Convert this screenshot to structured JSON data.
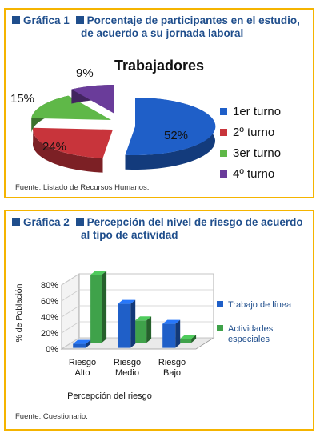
{
  "figure1": {
    "label": "Gráfica 1",
    "caption_line1": "Porcentaje de participantes en el estudio,",
    "caption_line2": "de acuerdo a su jornada laboral",
    "source": "Fuente: Listado de Recursos Humanos."
  },
  "figure2": {
    "label": "Gráfica 2",
    "caption_line1": "Percepción del nivel de riesgo de acuerdo",
    "caption_line2": "al tipo de actividad",
    "source": "Fuente: Cuestionario."
  },
  "chart_data": [
    {
      "type": "pie",
      "title": "Trabajadores",
      "categories": [
        "1er turno",
        "2º turno",
        "3er turno",
        "4º turno"
      ],
      "values": [
        52,
        24,
        15,
        9
      ],
      "value_labels": [
        "52%",
        "24%",
        "15%",
        "9%"
      ],
      "colors": [
        "#1f5fc8",
        "#c8343b",
        "#5fb848",
        "#6a3c9a"
      ],
      "legend": "right"
    },
    {
      "type": "bar",
      "categories": [
        "Riesgo Alto",
        "Riesgo Medio",
        "Riesgo Bajo"
      ],
      "category_lines": [
        [
          "Riesgo",
          "Alto"
        ],
        [
          "Riesgo",
          "Medio"
        ],
        [
          "Riesgo",
          "Bajo"
        ]
      ],
      "series": [
        {
          "name": "Trabajo de línea",
          "values": [
            5,
            55,
            30
          ],
          "color": "#1f5fc8"
        },
        {
          "name": "Actividades especiales",
          "values": [
            85,
            28,
            5
          ],
          "color": "#3fa24a"
        }
      ],
      "legend_lines": [
        [
          "Trabajo de línea"
        ],
        [
          "Actividades",
          "especiales"
        ]
      ],
      "ylabel": "% de Población",
      "xlabel": "Percepción del riesgo",
      "ylim": [
        0,
        80
      ],
      "yticks": [
        "0%",
        "20%",
        "40%",
        "60%",
        "80%"
      ],
      "legend": "right"
    }
  ]
}
